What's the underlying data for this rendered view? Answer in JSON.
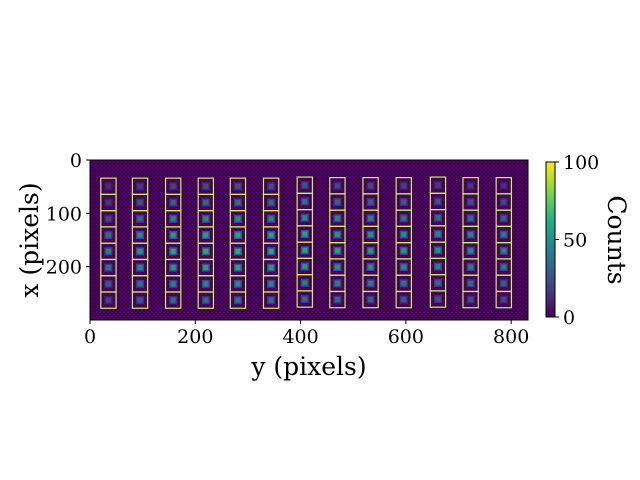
{
  "chart_data": {
    "type": "heatmap",
    "title": "",
    "xlabel": "y (pixels)",
    "ylabel": "x (pixels)",
    "xlim": [
      0,
      832
    ],
    "ylim": [
      300,
      0
    ],
    "xticks": [
      0,
      200,
      400,
      600,
      800
    ],
    "yticks": [
      0,
      100,
      200
    ],
    "grid": false,
    "colormap": "viridis",
    "background_color": "#440154",
    "box_color": "#c8f060",
    "colorbar": {
      "label": "Counts",
      "range": [
        0,
        100
      ],
      "ticks": [
        0,
        50,
        100
      ]
    },
    "spots": {
      "columns_y": [
        35,
        95,
        158,
        220,
        281,
        344,
        408,
        470,
        533,
        596,
        661,
        723,
        786
      ],
      "column_top_x": [
        34,
        34,
        34,
        34,
        34,
        34,
        32,
        33,
        33,
        33,
        32,
        33,
        33
      ],
      "rows_per_column": 8,
      "row_spacing_x": 30.5,
      "box_width": 29,
      "box_height": 30.5,
      "peak_counts": [
        [
          12,
          16,
          22,
          38,
          42,
          37,
          28,
          20
        ],
        [
          18,
          25,
          35,
          48,
          52,
          46,
          38,
          28
        ],
        [
          22,
          32,
          44,
          55,
          58,
          52,
          44,
          34
        ],
        [
          24,
          34,
          46,
          56,
          60,
          55,
          46,
          36
        ],
        [
          26,
          36,
          48,
          60,
          62,
          57,
          48,
          38
        ],
        [
          24,
          34,
          46,
          57,
          60,
          54,
          45,
          35
        ],
        [
          26,
          36,
          47,
          56,
          58,
          52,
          44,
          34
        ],
        [
          22,
          32,
          44,
          52,
          55,
          50,
          42,
          32
        ],
        [
          22,
          30,
          42,
          50,
          53,
          48,
          40,
          30
        ],
        [
          20,
          28,
          38,
          48,
          52,
          46,
          38,
          28
        ],
        [
          18,
          26,
          36,
          46,
          50,
          44,
          36,
          26
        ],
        [
          16,
          24,
          34,
          44,
          47,
          42,
          34,
          24
        ],
        [
          14,
          22,
          30,
          40,
          44,
          40,
          30,
          22
        ]
      ]
    }
  }
}
